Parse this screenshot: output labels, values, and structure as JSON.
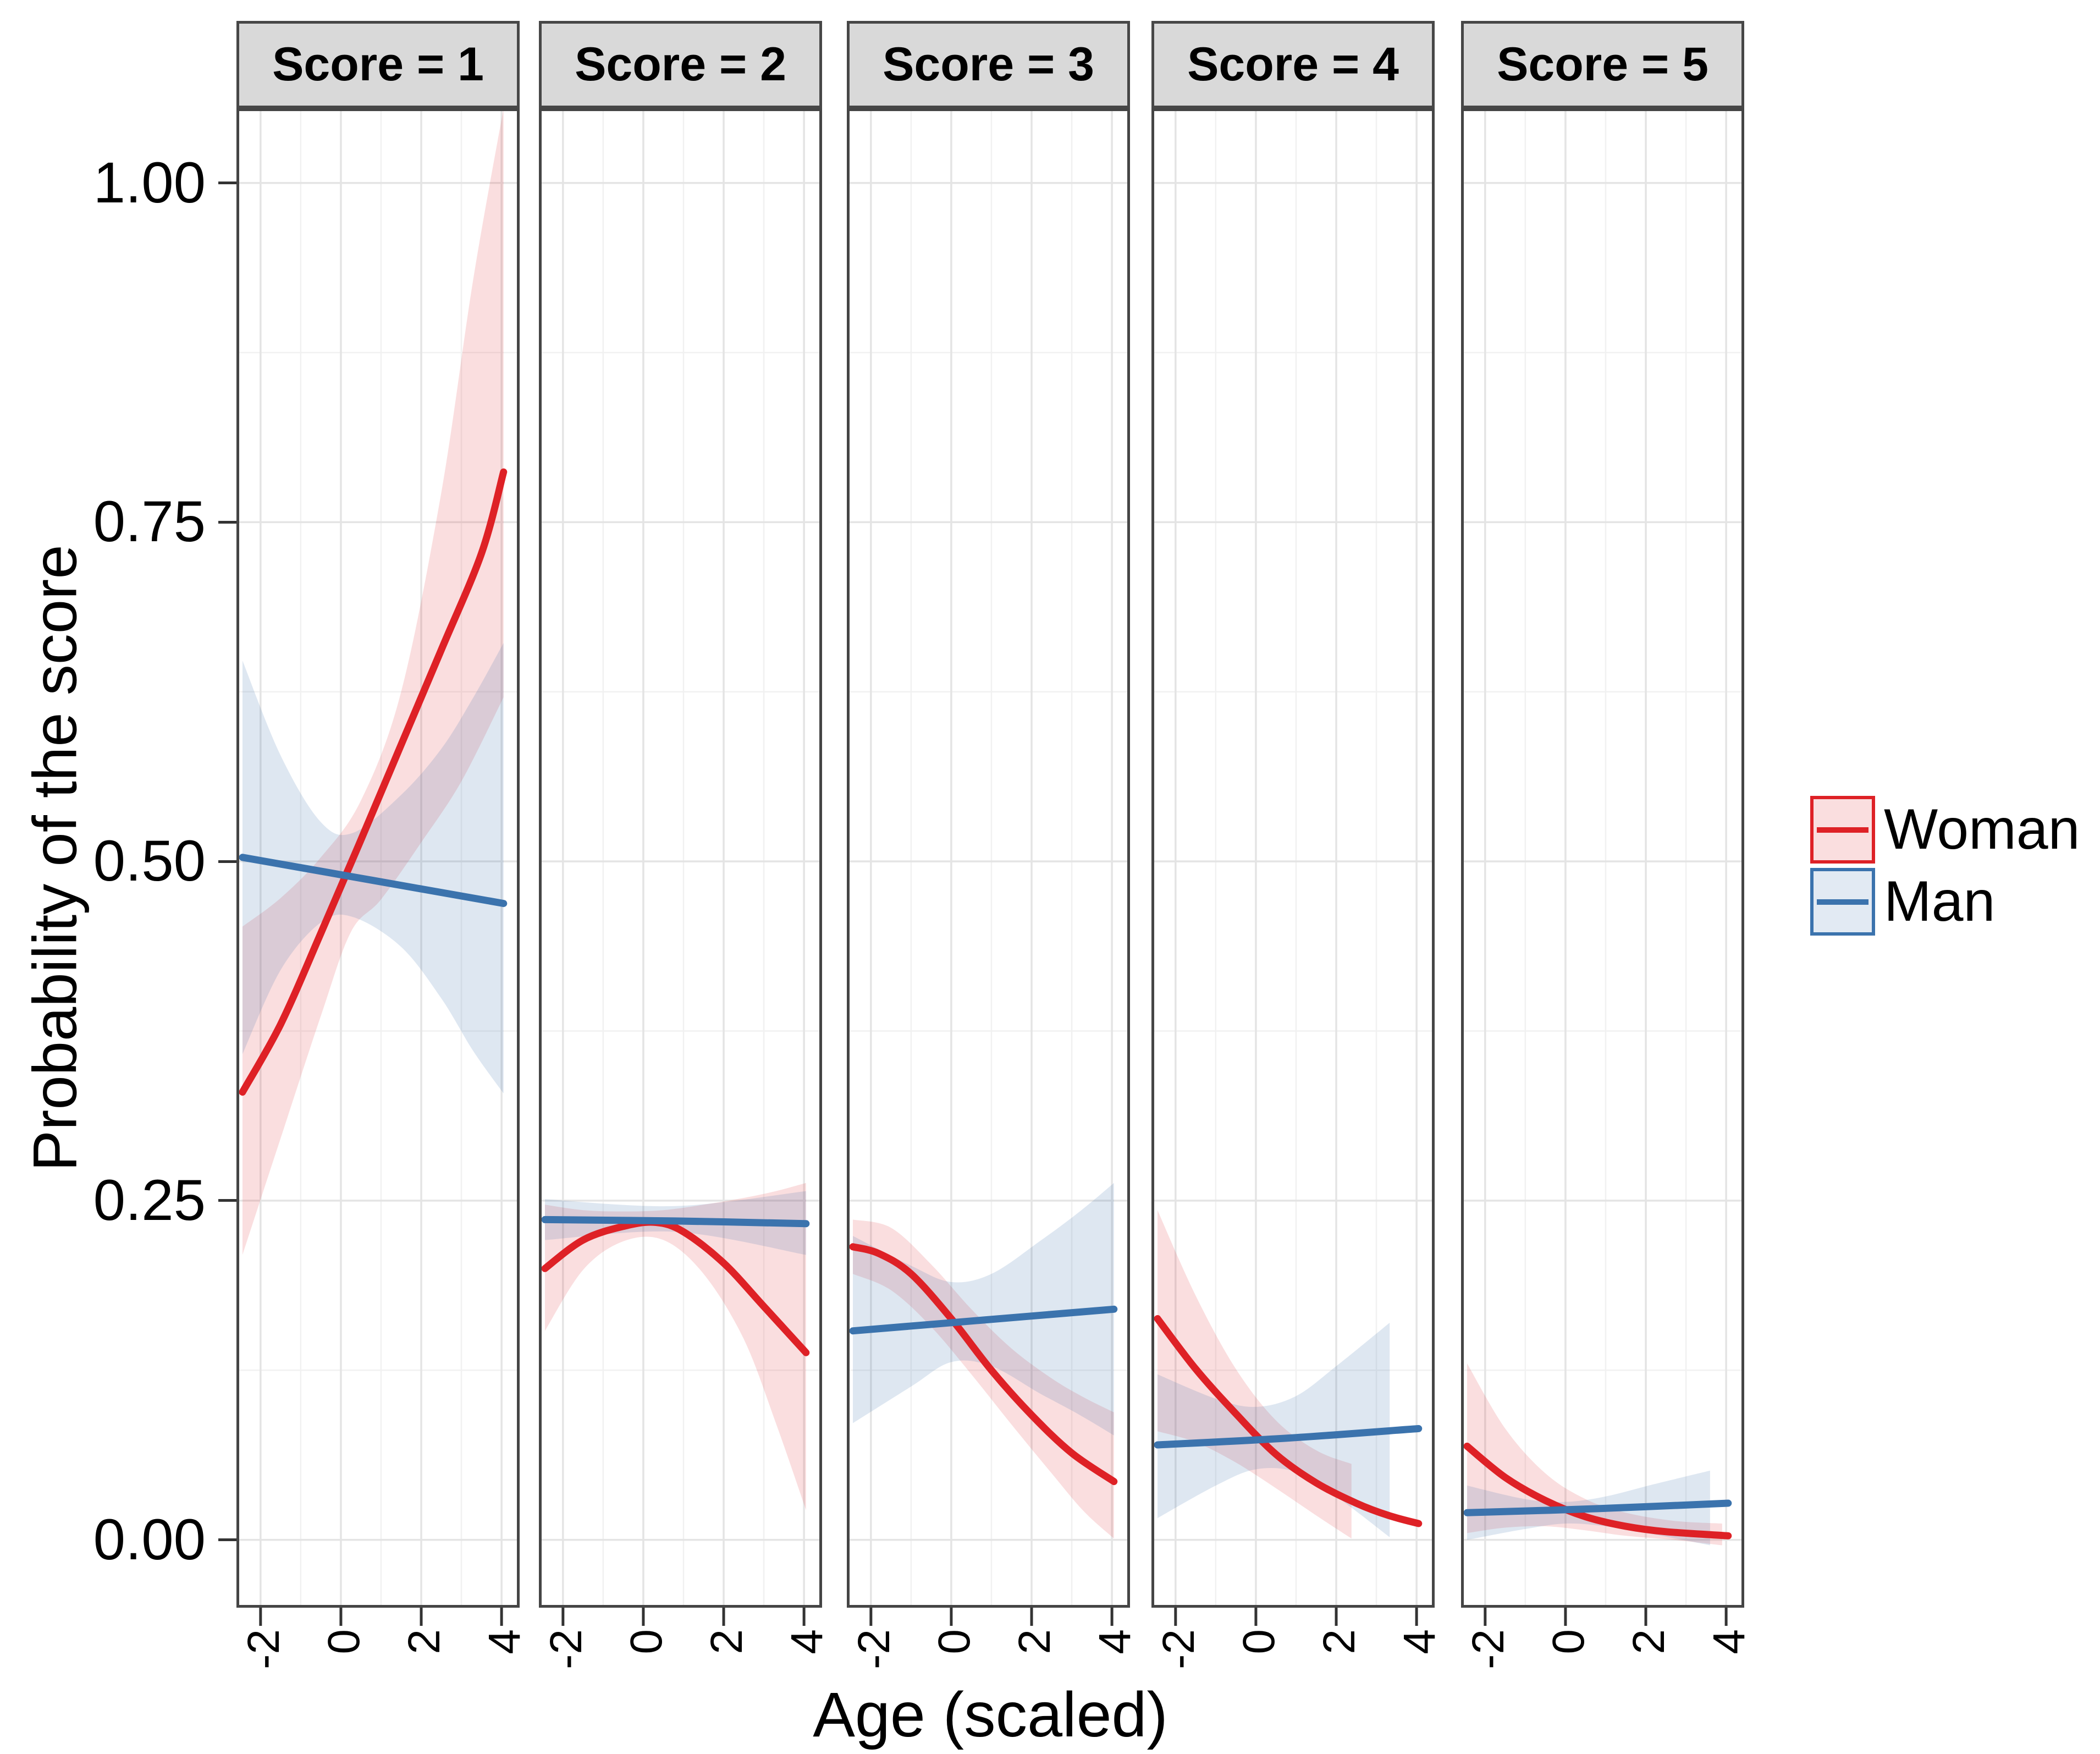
{
  "chart_data": {
    "type": "line",
    "title": "",
    "xlabel": "Age (scaled)",
    "ylabel": "Probability of the score",
    "xlim": [
      -2.6,
      4.45
    ],
    "ylim": [
      -0.05,
      1.055
    ],
    "x_ticks": [
      -2,
      0,
      2,
      4
    ],
    "x_tick_labels": [
      "-2",
      "0",
      "2",
      "4"
    ],
    "x_minor_gridlines": [
      -1,
      1,
      3
    ],
    "y_ticks": [
      0,
      0.25,
      0.5,
      0.75,
      1.0
    ],
    "y_tick_labels": [
      "0.00",
      "0.25",
      "0.50",
      "0.75",
      "1.00"
    ],
    "y_minor_gridlines": [
      0.125,
      0.375,
      0.625,
      0.875
    ],
    "grid": true,
    "legend": {
      "position": "right",
      "entries": [
        {
          "label": "Woman",
          "color": "#DE2126",
          "band_opacity": 0.15
        },
        {
          "label": "Man",
          "color": "#3B73AD",
          "band_opacity": 0.17
        }
      ]
    },
    "facets": [
      {
        "label": "Score = 1",
        "woman": {
          "line": [
            [
              -2.45,
              0.33
            ],
            [
              -1.5,
              0.38
            ],
            [
              -0.5,
              0.447
            ],
            [
              0.5,
              0.516
            ],
            [
              1.5,
              0.586
            ],
            [
              2.5,
              0.656
            ],
            [
              3.5,
              0.727
            ],
            [
              4.05,
              0.787
            ]
          ],
          "upper": [
            [
              -2.45,
              0.452
            ],
            [
              -1.5,
              0.473
            ],
            [
              -0.5,
              0.503
            ],
            [
              0.5,
              0.545
            ],
            [
              1.5,
              0.625
            ],
            [
              2.5,
              0.772
            ],
            [
              3.3,
              0.93
            ],
            [
              4.05,
              1.055
            ]
          ],
          "lower": [
            [
              -2.45,
              0.21
            ],
            [
              -1.5,
              0.296
            ],
            [
              -0.5,
              0.386
            ],
            [
              0.25,
              0.448
            ],
            [
              1,
              0.472
            ],
            [
              2,
              0.514
            ],
            [
              3,
              0.559
            ],
            [
              4.05,
              0.621
            ]
          ]
        },
        "man": {
          "line": [
            [
              -2.45,
              0.503
            ],
            [
              0.8,
              0.486
            ],
            [
              4.05,
              0.469
            ]
          ],
          "upper": [
            [
              -2.45,
              0.648
            ],
            [
              -1.5,
              0.578
            ],
            [
              -0.5,
              0.529
            ],
            [
              0.3,
              0.521
            ],
            [
              1.5,
              0.549
            ],
            [
              2.5,
              0.583
            ],
            [
              3.3,
              0.621
            ],
            [
              4.05,
              0.661
            ]
          ],
          "lower": [
            [
              -2.45,
              0.358
            ],
            [
              -1.5,
              0.42
            ],
            [
              -0.5,
              0.455
            ],
            [
              0.3,
              0.459
            ],
            [
              1.5,
              0.437
            ],
            [
              2.5,
              0.399
            ],
            [
              3.3,
              0.36
            ],
            [
              4.05,
              0.329
            ]
          ]
        }
      },
      {
        "label": "Score = 2",
        "woman": {
          "line": [
            [
              -2.45,
              0.2
            ],
            [
              -1.5,
              0.221
            ],
            [
              -0.5,
              0.231
            ],
            [
              0.3,
              0.234
            ],
            [
              1,
              0.227
            ],
            [
              2,
              0.204
            ],
            [
              3,
              0.172
            ],
            [
              4.05,
              0.138
            ]
          ],
          "upper": [
            [
              -2.45,
              0.247
            ],
            [
              -1.5,
              0.243
            ],
            [
              -0.5,
              0.242
            ],
            [
              0.5,
              0.243
            ],
            [
              1.5,
              0.247
            ],
            [
              2.5,
              0.252
            ],
            [
              3.3,
              0.257
            ],
            [
              4.05,
              0.263
            ]
          ],
          "lower": [
            [
              -2.45,
              0.154
            ],
            [
              -1.5,
              0.199
            ],
            [
              -0.5,
              0.22
            ],
            [
              0.5,
              0.221
            ],
            [
              1.5,
              0.196
            ],
            [
              2.5,
              0.148
            ],
            [
              3.3,
              0.086
            ],
            [
              4.05,
              0.022
            ]
          ]
        },
        "man": {
          "line": [
            [
              -2.45,
              0.236
            ],
            [
              0.8,
              0.235
            ],
            [
              4.05,
              0.233
            ]
          ],
          "upper": [
            [
              -2.45,
              0.251
            ],
            [
              0.8,
              0.246
            ],
            [
              4.05,
              0.257
            ]
          ],
          "lower": [
            [
              -2.45,
              0.221
            ],
            [
              0.8,
              0.227
            ],
            [
              4.05,
              0.21
            ]
          ]
        }
      },
      {
        "label": "Score = 3",
        "woman": {
          "line": [
            [
              -2.45,
              0.216
            ],
            [
              -1.8,
              0.211
            ],
            [
              -1,
              0.196
            ],
            [
              0,
              0.163
            ],
            [
              1,
              0.125
            ],
            [
              2,
              0.092
            ],
            [
              3,
              0.064
            ],
            [
              4.05,
              0.043
            ]
          ],
          "upper": [
            [
              -2.45,
              0.236
            ],
            [
              -1.5,
              0.23
            ],
            [
              -0.5,
              0.203
            ],
            [
              0.5,
              0.17
            ],
            [
              1.5,
              0.141
            ],
            [
              2.5,
              0.119
            ],
            [
              3.3,
              0.105
            ],
            [
              4.05,
              0.094
            ]
          ],
          "lower": [
            [
              -2.45,
              0.196
            ],
            [
              -1.5,
              0.184
            ],
            [
              -0.5,
              0.157
            ],
            [
              0.5,
              0.122
            ],
            [
              1.5,
              0.085
            ],
            [
              2.5,
              0.049
            ],
            [
              3.3,
              0.021
            ],
            [
              4.05,
              0.001
            ]
          ]
        },
        "man": {
          "line": [
            [
              -2.45,
              0.154
            ],
            [
              0.8,
              0.162
            ],
            [
              4.05,
              0.17
            ]
          ],
          "upper": [
            [
              -2.45,
              0.224
            ],
            [
              -1,
              0.202
            ],
            [
              0,
              0.19
            ],
            [
              1,
              0.196
            ],
            [
              2.2,
              0.22
            ],
            [
              3.2,
              0.242
            ],
            [
              4.05,
              0.263
            ]
          ],
          "lower": [
            [
              -2.45,
              0.086
            ],
            [
              -1,
              0.113
            ],
            [
              0,
              0.131
            ],
            [
              1,
              0.128
            ],
            [
              2.2,
              0.108
            ],
            [
              3.2,
              0.092
            ],
            [
              4.05,
              0.077
            ]
          ]
        }
      },
      {
        "label": "Score = 4",
        "woman": {
          "line": [
            [
              -2.45,
              0.163
            ],
            [
              -1.5,
              0.126
            ],
            [
              -0.5,
              0.093
            ],
            [
              0.5,
              0.063
            ],
            [
              1.5,
              0.042
            ],
            [
              2.5,
              0.027
            ],
            [
              3.3,
              0.018
            ],
            [
              4.05,
              0.012
            ]
          ],
          "upper": [
            [
              -2.45,
              0.243
            ],
            [
              -1.5,
              0.18
            ],
            [
              -0.5,
              0.126
            ],
            [
              0.5,
              0.088
            ],
            [
              1.5,
              0.066
            ],
            [
              2.38,
              0.056
            ]
          ],
          "lower": [
            [
              -2.45,
              0.08
            ],
            [
              -1.5,
              0.072
            ],
            [
              -0.5,
              0.057
            ],
            [
              0.5,
              0.038
            ],
            [
              1.5,
              0.018
            ],
            [
              2.38,
              0.001
            ]
          ]
        },
        "man": {
          "line": [
            [
              -2.45,
              0.07
            ],
            [
              0.8,
              0.075
            ],
            [
              4.05,
              0.082
            ]
          ],
          "upper": [
            [
              -2.45,
              0.122
            ],
            [
              -1,
              0.104
            ],
            [
              0,
              0.098
            ],
            [
              1,
              0.106
            ],
            [
              2,
              0.128
            ],
            [
              3.33,
              0.16
            ]
          ],
          "lower": [
            [
              -2.45,
              0.016
            ],
            [
              -1,
              0.04
            ],
            [
              0,
              0.052
            ],
            [
              1,
              0.05
            ],
            [
              2,
              0.032
            ],
            [
              3.33,
              0.002
            ]
          ]
        }
      },
      {
        "label": "Score = 5",
        "woman": {
          "line": [
            [
              -2.45,
              0.069
            ],
            [
              -1.5,
              0.046
            ],
            [
              -0.5,
              0.029
            ],
            [
              0.5,
              0.017
            ],
            [
              1.5,
              0.01
            ],
            [
              2.5,
              0.006
            ],
            [
              4.05,
              0.003
            ]
          ],
          "upper": [
            [
              -2.45,
              0.13
            ],
            [
              -1.5,
              0.082
            ],
            [
              -0.5,
              0.049
            ],
            [
              0.5,
              0.03
            ],
            [
              1.5,
              0.02
            ],
            [
              2.7,
              0.014
            ],
            [
              3.9,
              0.012
            ]
          ],
          "lower": [
            [
              -2.45,
              0.005
            ],
            [
              -1.5,
              0.009
            ],
            [
              -0.5,
              0.01
            ],
            [
              0.5,
              0.007
            ],
            [
              1.5,
              0.003
            ],
            [
              2.7,
              0.0
            ],
            [
              3.9,
              -0.004
            ]
          ]
        },
        "man": {
          "line": [
            [
              -2.45,
              0.02
            ],
            [
              0.8,
              0.023
            ],
            [
              4.05,
              0.027
            ]
          ],
          "upper": [
            [
              -2.45,
              0.04
            ],
            [
              -1,
              0.03
            ],
            [
              0,
              0.028
            ],
            [
              1,
              0.032
            ],
            [
              2.2,
              0.041
            ],
            [
              3.6,
              0.051
            ]
          ],
          "lower": [
            [
              -2.45,
              0.0
            ],
            [
              -1,
              0.008
            ],
            [
              0,
              0.012
            ],
            [
              1,
              0.01
            ],
            [
              2.2,
              0.004
            ],
            [
              3.6,
              -0.004
            ]
          ]
        }
      }
    ],
    "theme": {
      "panel_border": "#454545",
      "strip_fill": "#d9d9d9",
      "grid_major": "#e4e4e4",
      "grid_minor": "#f1f1f1",
      "tick_color": "#333333",
      "line_width": 13
    }
  }
}
